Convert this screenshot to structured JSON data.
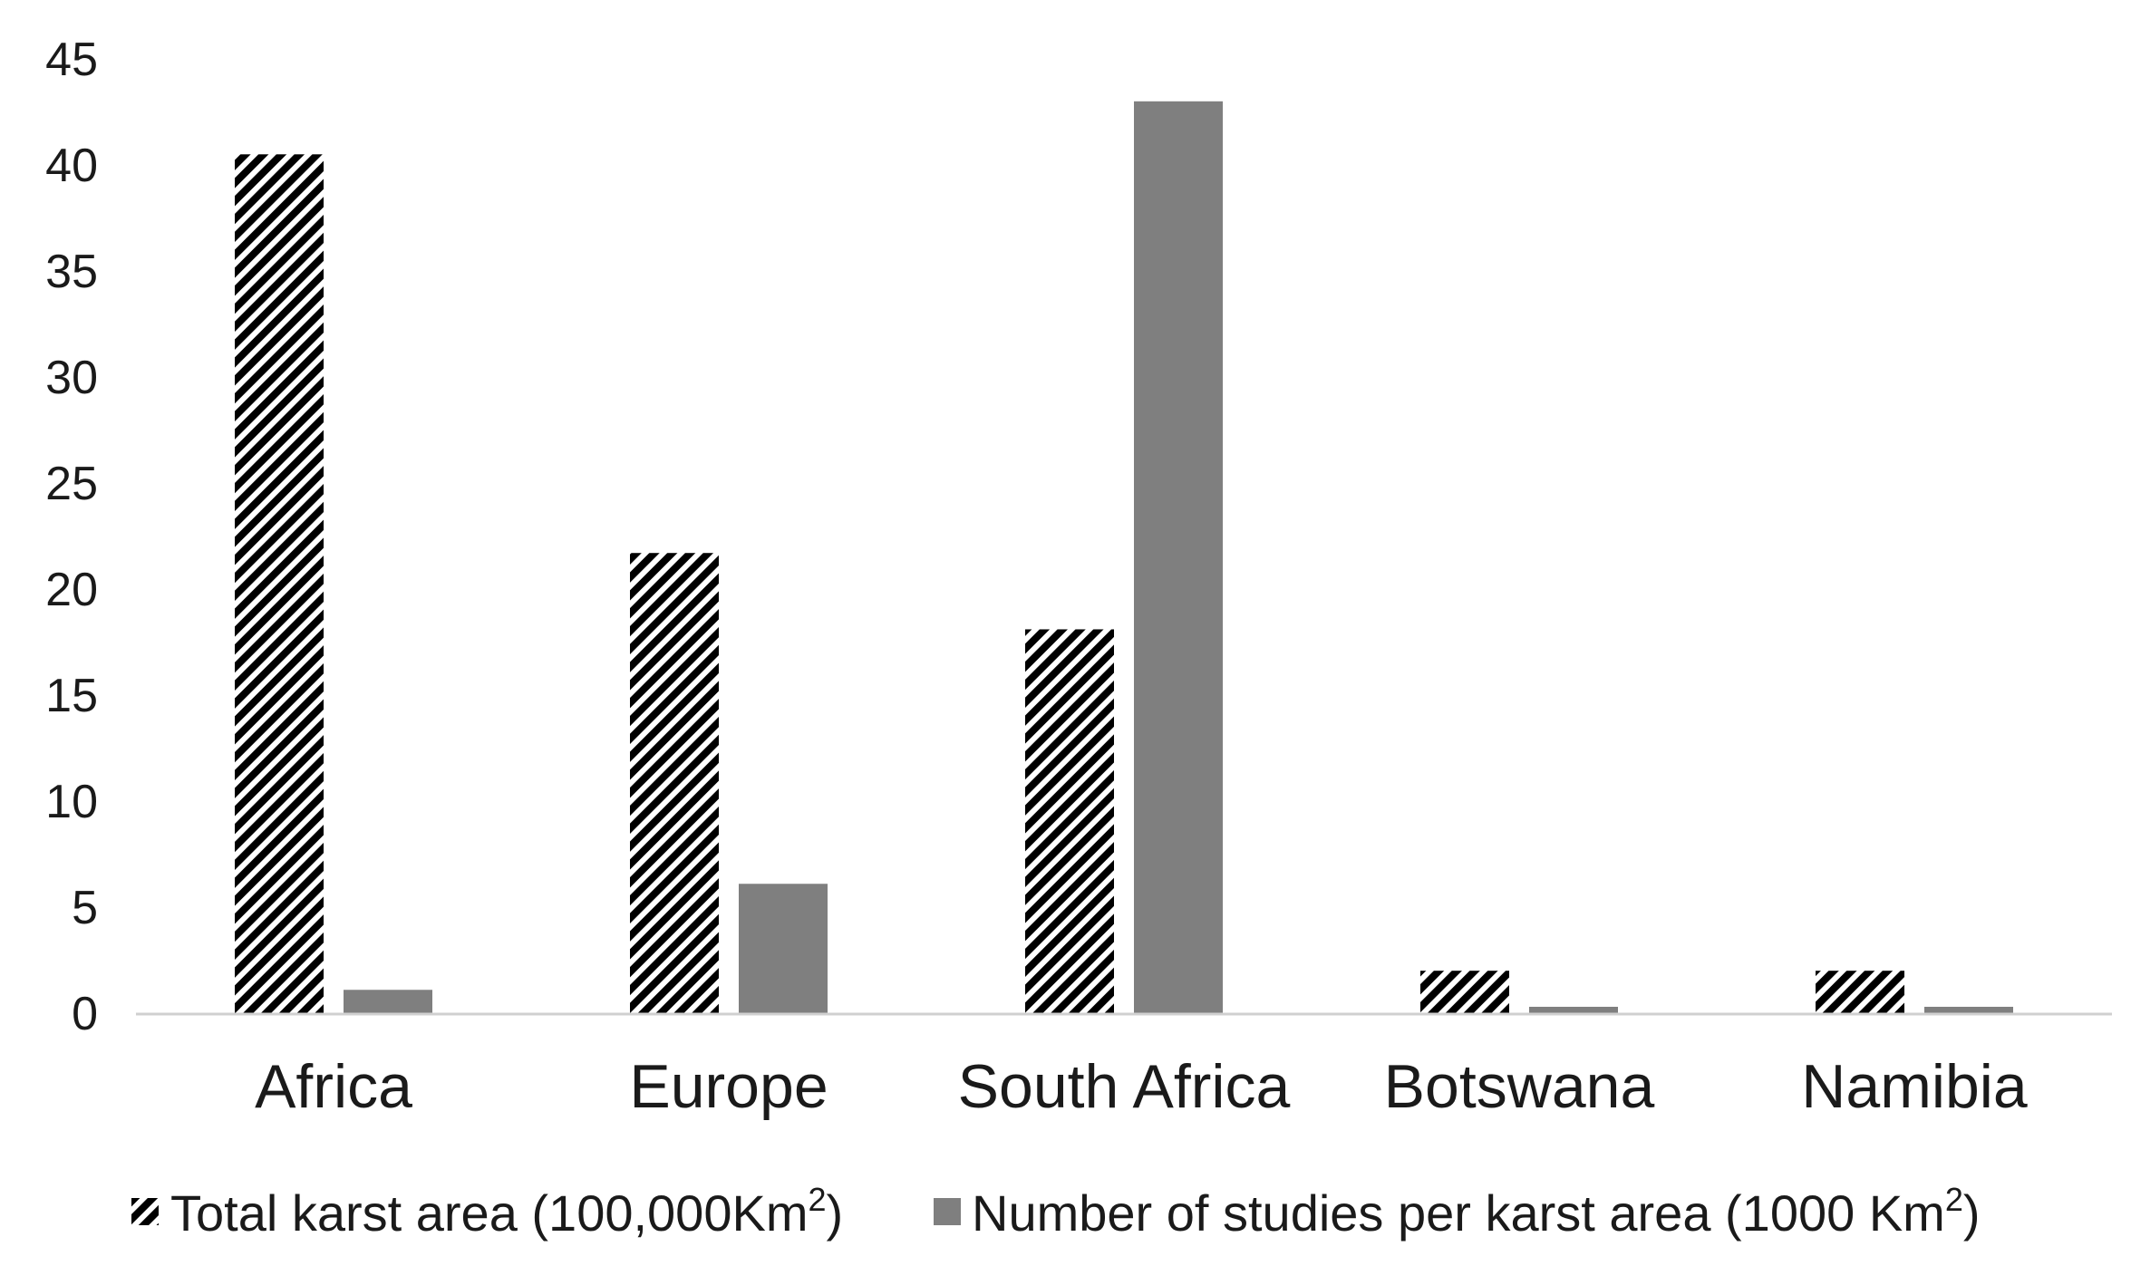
{
  "chart_data": {
    "type": "bar",
    "categories": [
      "Africa",
      "Europe",
      "South Africa",
      "Botswana",
      "Namibia"
    ],
    "series": [
      {
        "name": "Total karst area (100,000Km²)",
        "values": [
          40.5,
          21.7,
          18.1,
          2.0,
          2.0
        ],
        "color": "#000000",
        "pattern": "diagonal-hatch"
      },
      {
        "name": "Number of studies per karst area (1000 Km²)",
        "values": [
          1.1,
          6.1,
          43.0,
          0.3,
          0.3
        ],
        "color": "#7f7f7f",
        "pattern": "solid"
      }
    ],
    "title": "",
    "xlabel": "",
    "ylabel": "",
    "ylim": [
      0,
      45
    ],
    "yticks": [
      "0",
      "5",
      "10",
      "15",
      "20",
      "25",
      "30",
      "35",
      "40",
      "45"
    ],
    "grid": false,
    "legend_position": "bottom",
    "legend": {
      "series1_text": "Total karst area (100,000Km",
      "series1_sup": "2",
      "series1_close": ")",
      "series2_text": "Number of studies per karst area (1000 Km",
      "series2_sup": "2",
      "series2_close": ")"
    }
  }
}
